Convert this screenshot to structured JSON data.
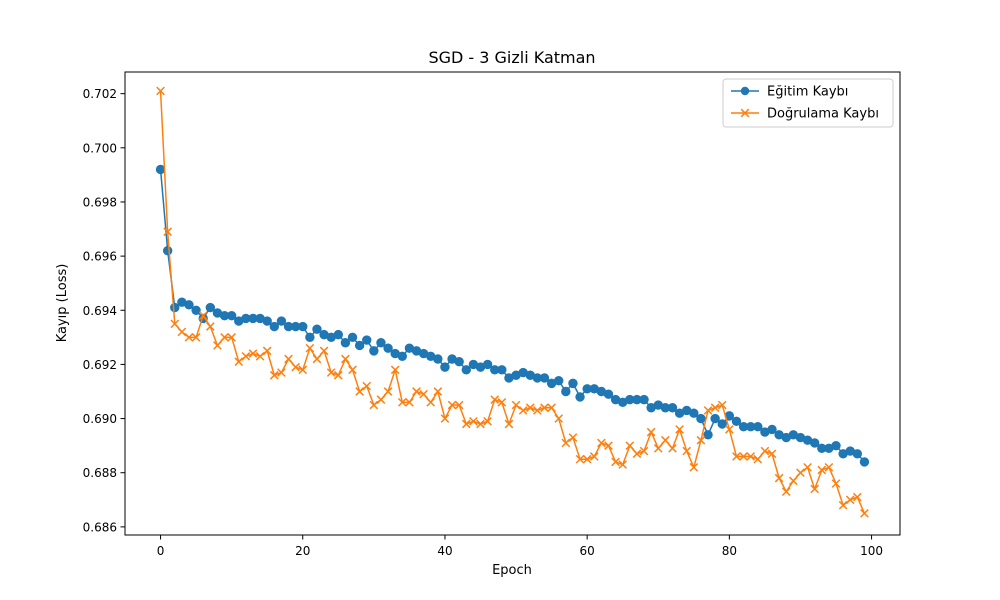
{
  "chart_data": {
    "type": "line",
    "title": "SGD - 3 Gizli Katman",
    "xlabel": "Epoch",
    "ylabel": "Kayıp (Loss)",
    "xlim": [
      -5,
      104
    ],
    "ylim": [
      0.6857,
      0.7028
    ],
    "x_ticks": [
      0,
      20,
      40,
      60,
      80,
      100
    ],
    "y_ticks": [
      0.686,
      0.688,
      0.69,
      0.692,
      0.694,
      0.696,
      0.698,
      0.7,
      0.702
    ],
    "y_tick_labels": [
      "0.686",
      "0.688",
      "0.690",
      "0.692",
      "0.694",
      "0.696",
      "0.698",
      "0.700",
      "0.702"
    ],
    "x_tick_labels": [
      "0",
      "20",
      "40",
      "60",
      "80",
      "100"
    ],
    "grid": false,
    "legend_position": "top-right",
    "series": [
      {
        "name": "Eğitim Kaybı",
        "color": "#1f77b4",
        "marker": "circle",
        "values": [
          0.6992,
          0.6962,
          0.6941,
          0.6943,
          0.6942,
          0.694,
          0.6937,
          0.6941,
          0.6939,
          0.6938,
          0.6938,
          0.6936,
          0.6937,
          0.6937,
          0.6937,
          0.6936,
          0.6934,
          0.6936,
          0.6934,
          0.6934,
          0.6934,
          0.693,
          0.6933,
          0.6931,
          0.693,
          0.6931,
          0.6928,
          0.693,
          0.6927,
          0.6929,
          0.6925,
          0.6928,
          0.6926,
          0.6924,
          0.6923,
          0.6926,
          0.6925,
          0.6924,
          0.6923,
          0.6922,
          0.6919,
          0.6922,
          0.6921,
          0.6918,
          0.692,
          0.6919,
          0.692,
          0.6918,
          0.6918,
          0.6915,
          0.6916,
          0.6917,
          0.6916,
          0.6915,
          0.6915,
          0.6913,
          0.6914,
          0.691,
          0.6913,
          0.6908,
          0.6911,
          0.6911,
          0.691,
          0.6909,
          0.6907,
          0.6906,
          0.6907,
          0.6907,
          0.6907,
          0.6904,
          0.6905,
          0.6904,
          0.6904,
          0.6902,
          0.6903,
          0.6902,
          0.69,
          0.6894,
          0.69,
          0.6898,
          0.6901,
          0.6899,
          0.6897,
          0.6897,
          0.6897,
          0.6895,
          0.6896,
          0.6894,
          0.6893,
          0.6894,
          0.6893,
          0.6892,
          0.6891,
          0.6889,
          0.6889,
          0.689,
          0.6887,
          0.6888,
          0.6887,
          0.6884
        ]
      },
      {
        "name": "Doğrulama Kaybı",
        "color": "#ff7f0e",
        "marker": "x",
        "values": [
          0.7021,
          0.6969,
          0.6935,
          0.6932,
          0.693,
          0.693,
          0.6938,
          0.6934,
          0.6927,
          0.693,
          0.693,
          0.6921,
          0.6923,
          0.6924,
          0.6923,
          0.6925,
          0.6916,
          0.6917,
          0.6922,
          0.6919,
          0.6918,
          0.6926,
          0.6922,
          0.6925,
          0.6917,
          0.6916,
          0.6922,
          0.6918,
          0.691,
          0.6912,
          0.6905,
          0.6907,
          0.691,
          0.6918,
          0.6906,
          0.6906,
          0.691,
          0.6909,
          0.6906,
          0.691,
          0.69,
          0.6905,
          0.6905,
          0.6898,
          0.6899,
          0.6898,
          0.6899,
          0.6907,
          0.6906,
          0.6898,
          0.6905,
          0.6903,
          0.6904,
          0.6903,
          0.6904,
          0.6904,
          0.69,
          0.6891,
          0.6893,
          0.6885,
          0.6885,
          0.6886,
          0.6891,
          0.689,
          0.6884,
          0.6883,
          0.689,
          0.6887,
          0.6888,
          0.6895,
          0.6889,
          0.6892,
          0.6889,
          0.6896,
          0.6888,
          0.6882,
          0.6892,
          0.6903,
          0.6904,
          0.6905,
          0.6896,
          0.6886,
          0.6886,
          0.6886,
          0.6885,
          0.6888,
          0.6887,
          0.6878,
          0.6873,
          0.6877,
          0.688,
          0.6882,
          0.6874,
          0.6881,
          0.6882,
          0.6876,
          0.6868,
          0.687,
          0.6871,
          0.6865
        ]
      }
    ]
  }
}
